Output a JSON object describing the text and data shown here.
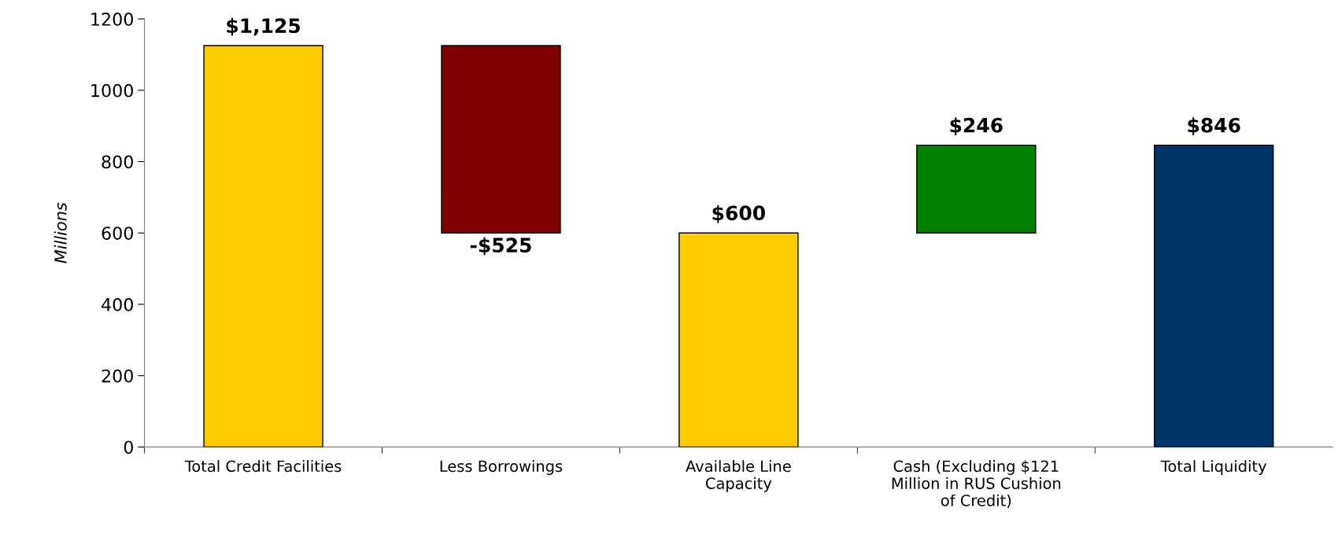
{
  "chart_data": {
    "type": "bar",
    "ylabel": "Millions",
    "categories": [
      "Total Credit Facilities",
      "Less Borrowings",
      "Available Line\nCapacity",
      "Cash (Excluding $121\nMillion in RUS Cushion\nof Credit)",
      "Total Liquidity"
    ],
    "values": [
      1125,
      -525,
      600,
      246,
      846
    ],
    "base": [
      0,
      1125,
      0,
      600,
      0
    ],
    "colors": [
      "#ffcc00",
      "#800000",
      "#ffcc00",
      "#008000",
      "#003366"
    ],
    "value_labels": [
      "$1,125",
      "-$525",
      "$600",
      "$246",
      "$846"
    ],
    "ylim": [
      0,
      1200
    ],
    "yticks": [
      0,
      200,
      400,
      600,
      800,
      1000,
      1200
    ],
    "grid": false
  }
}
